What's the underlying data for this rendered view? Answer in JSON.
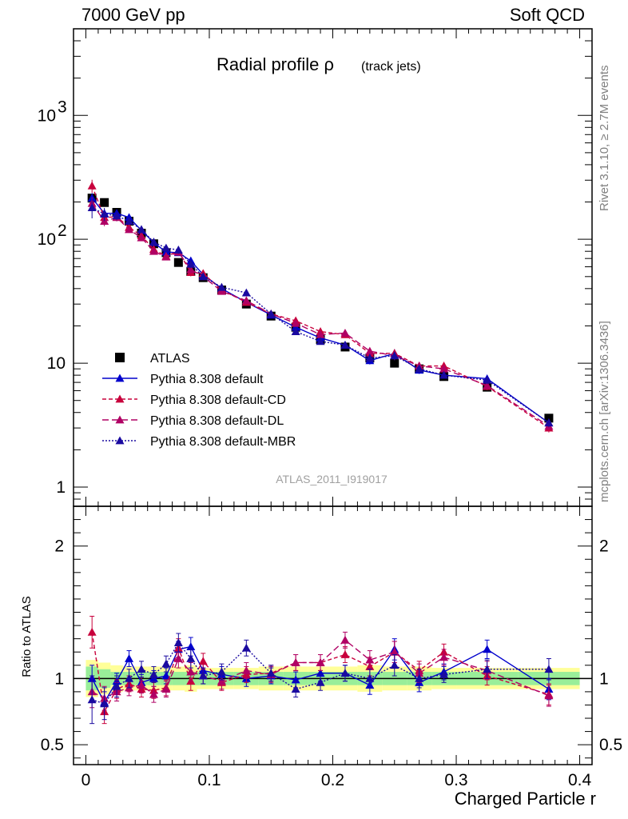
{
  "header": {
    "left": "7000 GeV pp",
    "right": "Soft QCD"
  },
  "side": {
    "rivet": "Rivet 3.1.10, ≥ 2.7M events",
    "mcplots": "mcplots.cern.ch [arXiv:1306.3436]"
  },
  "chart_data": {
    "type": "scatter",
    "title": "Radial profile ρ",
    "title_suffix": "(track jets)",
    "watermark": "ATLAS_2011_I919017",
    "xlabel": "Charged Particle r",
    "ylabel": "",
    "ratio_ylabel": "Ratio to ATLAS",
    "xlim": [
      -0.01,
      0.41
    ],
    "ylim": [
      0.7,
      5000
    ],
    "yscale": "log",
    "ratio_ylim": [
      0.35,
      2.3
    ],
    "x_ticks": [
      "0",
      "0.1",
      "0.2",
      "0.3",
      "0.4"
    ],
    "y_ticks": [
      "1",
      "10",
      "10^2",
      "10^3"
    ],
    "ratio_ticks": [
      "0.5",
      "1",
      "2"
    ],
    "legend_position": "left-middle",
    "x": [
      0.005,
      0.015,
      0.025,
      0.035,
      0.045,
      0.055,
      0.065,
      0.075,
      0.085,
      0.095,
      0.11,
      0.13,
      0.15,
      0.17,
      0.19,
      0.21,
      0.23,
      0.25,
      0.27,
      0.29,
      0.325,
      0.375
    ],
    "band_edges": [
      0,
      0.01,
      0.02,
      0.03,
      0.04,
      0.05,
      0.06,
      0.07,
      0.08,
      0.09,
      0.1,
      0.12,
      0.14,
      0.16,
      0.18,
      0.2,
      0.22,
      0.24,
      0.26,
      0.28,
      0.3,
      0.35,
      0.4
    ],
    "band_stat": [
      0.09,
      0.07,
      0.05,
      0.05,
      0.05,
      0.05,
      0.05,
      0.05,
      0.05,
      0.05,
      0.05,
      0.05,
      0.05,
      0.05,
      0.05,
      0.05,
      0.05,
      0.05,
      0.05,
      0.05,
      0.05,
      0.05
    ],
    "band_total": [
      0.14,
      0.12,
      0.1,
      0.09,
      0.09,
      0.09,
      0.09,
      0.09,
      0.1,
      0.08,
      0.08,
      0.08,
      0.09,
      0.09,
      0.09,
      0.09,
      0.1,
      0.09,
      0.09,
      0.08,
      0.08,
      0.08
    ],
    "series": [
      {
        "name": "ATLAS",
        "color": "#000000",
        "marker": "square",
        "values": [
          215,
          198,
          165,
          140,
          112,
          92,
          78,
          65,
          55,
          49,
          39,
          30,
          24,
          19.5,
          15.5,
          13.5,
          11,
          10,
          9,
          7.8,
          6.4,
          3.6
        ]
      },
      {
        "name": "Pythia 8.308 default",
        "color": "#0000cc",
        "marker": "triangle",
        "dash": "",
        "values": [
          215,
          162,
          162,
          150,
          118,
          94,
          79,
          78,
          67,
          52,
          40,
          31,
          24.5,
          19.5,
          16,
          14,
          10.5,
          12,
          8.8,
          8,
          7.5,
          3.3
        ],
        "ratio": [
          1.0,
          0.82,
          0.98,
          1.15,
          0.97,
          1.0,
          1.02,
          1.22,
          1.24,
          1.06,
          1.03,
          1.0,
          1.02,
          0.99,
          1.04,
          1.04,
          0.95,
          1.22,
          0.97,
          1.05,
          1.22,
          0.92
        ],
        "err_lo": [
          0.1,
          0.08,
          0.06,
          0.06,
          0.06,
          0.06,
          0.06,
          0.06,
          0.07,
          0.06,
          0.06,
          0.06,
          0.06,
          0.06,
          0.06,
          0.06,
          0.07,
          0.08,
          0.07,
          0.06,
          0.07,
          0.08
        ],
        "err_hi": [
          0.1,
          0.08,
          0.06,
          0.06,
          0.06,
          0.06,
          0.06,
          0.06,
          0.07,
          0.06,
          0.06,
          0.06,
          0.06,
          0.06,
          0.06,
          0.06,
          0.07,
          0.08,
          0.07,
          0.06,
          0.07,
          0.08
        ]
      },
      {
        "name": "Pythia 8.308 default-CD",
        "color": "#c8003c",
        "marker": "triangle",
        "dash": "5,3",
        "values": [
          270,
          150,
          152,
          125,
          107,
          83,
          73,
          80,
          54,
          53,
          39,
          31,
          25,
          22,
          18,
          17,
          12,
          12,
          9.5,
          9.5,
          6.5,
          3.0
        ],
        "ratio": [
          1.35,
          0.75,
          0.92,
          0.96,
          0.92,
          0.91,
          0.93,
          1.23,
          0.98,
          1.13,
          0.97,
          1.03,
          1.04,
          1.12,
          1.12,
          1.18,
          1.09,
          1.2,
          1.06,
          1.2,
          1.02,
          0.88
        ],
        "err_lo": [
          0.12,
          0.09,
          0.07,
          0.06,
          0.06,
          0.06,
          0.06,
          0.07,
          0.07,
          0.06,
          0.06,
          0.06,
          0.06,
          0.06,
          0.06,
          0.06,
          0.07,
          0.08,
          0.07,
          0.06,
          0.07,
          0.08
        ],
        "err_hi": [
          0.12,
          0.09,
          0.07,
          0.06,
          0.06,
          0.06,
          0.06,
          0.07,
          0.07,
          0.06,
          0.06,
          0.06,
          0.06,
          0.06,
          0.06,
          0.06,
          0.07,
          0.08,
          0.07,
          0.06,
          0.07,
          0.08
        ]
      },
      {
        "name": "Pythia 8.308 default-DL",
        "color": "#b00064",
        "marker": "triangle",
        "dash": "8,4",
        "values": [
          195,
          140,
          150,
          120,
          103,
          80,
          72,
          79,
          57,
          50,
          38,
          32,
          25,
          21,
          17,
          17.5,
          12.5,
          11.5,
          9.5,
          9,
          6.6,
          3.1
        ],
        "ratio": [
          0.9,
          0.85,
          0.9,
          0.93,
          0.95,
          0.88,
          0.92,
          1.15,
          1.05,
          1.02,
          0.98,
          1.06,
          1.03,
          1.12,
          1.12,
          1.29,
          1.14,
          1.2,
          1.04,
          1.16,
          1.06,
          0.87
        ],
        "err_lo": [
          0.12,
          0.09,
          0.07,
          0.06,
          0.06,
          0.06,
          0.06,
          0.07,
          0.07,
          0.06,
          0.06,
          0.06,
          0.06,
          0.06,
          0.06,
          0.06,
          0.07,
          0.08,
          0.07,
          0.06,
          0.07,
          0.08
        ],
        "err_hi": [
          0.12,
          0.09,
          0.07,
          0.06,
          0.06,
          0.06,
          0.06,
          0.07,
          0.07,
          0.06,
          0.06,
          0.06,
          0.06,
          0.06,
          0.06,
          0.06,
          0.07,
          0.08,
          0.07,
          0.06,
          0.07,
          0.08
        ]
      },
      {
        "name": "Pythia 8.308 default-MBR",
        "color": "#1a0aa0",
        "marker": "triangle",
        "dash": "2,2",
        "values": [
          180,
          160,
          155,
          140,
          120,
          95,
          85,
          82,
          63,
          50,
          41,
          37,
          25,
          18,
          15,
          14,
          11,
          11.5,
          9,
          8,
          7.3,
          3.3
        ],
        "ratio": [
          0.84,
          0.81,
          0.94,
          1.0,
          1.07,
          1.03,
          1.11,
          1.27,
          1.15,
          1.02,
          1.05,
          1.23,
          1.04,
          0.92,
          0.97,
          1.04,
          1.0,
          1.1,
          1.0,
          1.03,
          1.07,
          1.07
        ],
        "err_lo": [
          0.18,
          0.12,
          0.08,
          0.07,
          0.06,
          0.06,
          0.06,
          0.07,
          0.07,
          0.06,
          0.06,
          0.06,
          0.06,
          0.06,
          0.06,
          0.06,
          0.07,
          0.08,
          0.07,
          0.06,
          0.07,
          0.08
        ],
        "err_hi": [
          0.18,
          0.12,
          0.08,
          0.07,
          0.06,
          0.06,
          0.06,
          0.07,
          0.07,
          0.06,
          0.06,
          0.06,
          0.06,
          0.06,
          0.06,
          0.06,
          0.07,
          0.08,
          0.07,
          0.06,
          0.07,
          0.08
        ]
      }
    ]
  }
}
